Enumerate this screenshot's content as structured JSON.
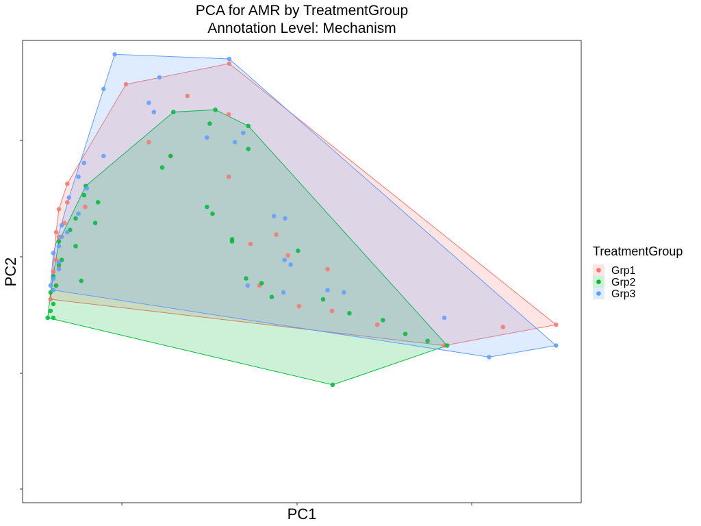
{
  "chart_data": {
    "type": "scatter",
    "title": "PCA for AMR by TreatmentGroup",
    "subtitle": "Annotation Level: Mechanism",
    "xlabel": "PC1",
    "ylabel": "PC2",
    "xlim": [
      0,
      100
    ],
    "ylim": [
      0,
      100
    ],
    "grid": false,
    "hull_outline": true,
    "legend": {
      "title": "TreatmentGroup",
      "placement": "right"
    },
    "series": [
      {
        "name": "Grp1",
        "color": "#F8766D",
        "points": [
          [
            37.0,
            95.0
          ],
          [
            18.5,
            90.5
          ],
          [
            29.5,
            88.0
          ],
          [
            36.9,
            84.0
          ],
          [
            22.6,
            78.0
          ],
          [
            26.5,
            75.0
          ],
          [
            36.9,
            70.5
          ],
          [
            8.0,
            69.0
          ],
          [
            8.0,
            65.0
          ],
          [
            11.2,
            64.0
          ],
          [
            6.5,
            63.5
          ],
          [
            7.5,
            60.5
          ],
          [
            6.0,
            58.5
          ],
          [
            45.4,
            58.0
          ],
          [
            6.5,
            57.5
          ],
          [
            40.8,
            56.0
          ],
          [
            47.5,
            53.5
          ],
          [
            6.0,
            52.5
          ],
          [
            6.5,
            51.0
          ],
          [
            5.5,
            50.0
          ],
          [
            54.6,
            50.5
          ],
          [
            42.4,
            47.0
          ],
          [
            6.0,
            47.0
          ],
          [
            5.0,
            44.0
          ],
          [
            49.5,
            42.5
          ],
          [
            55.4,
            41.5
          ],
          [
            63.5,
            38.5
          ],
          [
            86.0,
            38.0
          ],
          [
            95.5,
            38.5
          ],
          [
            75.5,
            34.0
          ]
        ]
      },
      {
        "name": "Grp2",
        "color": "#00BA38",
        "points": [
          [
            34.5,
            85.0
          ],
          [
            27.0,
            84.5
          ],
          [
            33.5,
            82.0
          ],
          [
            40.4,
            81.5
          ],
          [
            40.4,
            76.5
          ],
          [
            26.5,
            75.0
          ],
          [
            25.0,
            72.5
          ],
          [
            11.3,
            68.5
          ],
          [
            11.0,
            66.5
          ],
          [
            13.5,
            65.0
          ],
          [
            33.0,
            64.0
          ],
          [
            34.0,
            62.5
          ],
          [
            9.5,
            61.5
          ],
          [
            13.0,
            60.5
          ],
          [
            8.5,
            59.0
          ],
          [
            37.5,
            57.0
          ],
          [
            37.5,
            56.5
          ],
          [
            6.5,
            56.5
          ],
          [
            9.5,
            55.5
          ],
          [
            49.3,
            54.5
          ],
          [
            7.0,
            52.5
          ],
          [
            6.5,
            51.5
          ],
          [
            5.5,
            49.0
          ],
          [
            10.5,
            48.0
          ],
          [
            40.0,
            48.5
          ],
          [
            42.8,
            47.5
          ],
          [
            6.0,
            47.0
          ],
          [
            5.0,
            45.5
          ],
          [
            44.6,
            44.5
          ],
          [
            53.8,
            44.0
          ],
          [
            5.5,
            43.0
          ],
          [
            58.5,
            41.0
          ],
          [
            5.0,
            41.5
          ],
          [
            4.5,
            40.0
          ],
          [
            64.5,
            39.5
          ],
          [
            68.5,
            36.5
          ],
          [
            72.5,
            35.0
          ],
          [
            76.0,
            34.0
          ],
          [
            55.5,
            25.5
          ],
          [
            5.5,
            40.0
          ]
        ]
      },
      {
        "name": "Grp3",
        "color": "#619CFF",
        "points": [
          [
            16.5,
            97.0
          ],
          [
            37.0,
            96.0
          ],
          [
            24.5,
            92.0
          ],
          [
            14.5,
            89.5
          ],
          [
            22.6,
            86.5
          ],
          [
            23.5,
            84.5
          ],
          [
            33.0,
            79.0
          ],
          [
            38.0,
            78.0
          ],
          [
            39.5,
            80.0
          ],
          [
            14.5,
            75.0
          ],
          [
            11.0,
            73.5
          ],
          [
            10.0,
            70.5
          ],
          [
            11.5,
            68.0
          ],
          [
            8.3,
            66.0
          ],
          [
            45.0,
            62.0
          ],
          [
            47.0,
            61.5
          ],
          [
            10.0,
            62.5
          ],
          [
            7.0,
            60.0
          ],
          [
            8.0,
            58.5
          ],
          [
            7.0,
            57.5
          ],
          [
            6.5,
            55.5
          ],
          [
            5.5,
            54.0
          ],
          [
            46.9,
            52.5
          ],
          [
            6.5,
            52.0
          ],
          [
            6.5,
            50.5
          ],
          [
            48.0,
            51.5
          ],
          [
            5.5,
            48.5
          ],
          [
            40.3,
            47.0
          ],
          [
            5.0,
            47.0
          ],
          [
            5.5,
            46.0
          ],
          [
            54.6,
            46.0
          ],
          [
            46.7,
            45.5
          ],
          [
            57.5,
            45.5
          ],
          [
            75.5,
            40.0
          ],
          [
            95.5,
            34.0
          ],
          [
            83.5,
            31.5
          ]
        ]
      }
    ]
  }
}
